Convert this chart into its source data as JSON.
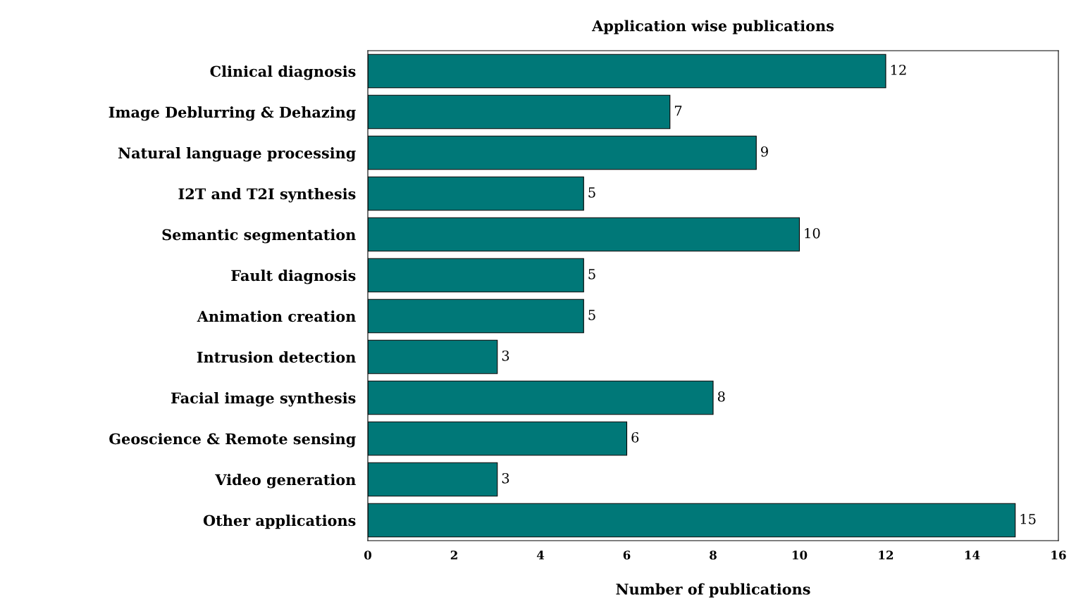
{
  "chart_data": {
    "type": "bar",
    "orientation": "horizontal",
    "title": "Application wise publications",
    "xlabel": "Number of publications",
    "categories": [
      "Clinical diagnosis",
      "Image Deblurring & Dehazing",
      "Natural language processing",
      "I2T and T2I synthesis",
      "Semantic segmentation",
      "Fault diagnosis",
      "Animation creation",
      "Intrusion detection",
      "Facial image synthesis",
      "Geoscience & Remote sensing",
      "Video generation",
      "Other applications"
    ],
    "values": [
      12,
      7,
      9,
      5,
      10,
      5,
      5,
      3,
      8,
      6,
      3,
      15
    ],
    "color": "#007878",
    "xlim": [
      0,
      16
    ],
    "xticks": [
      0,
      2,
      4,
      6,
      8,
      10,
      12,
      14,
      16
    ],
    "data_labels": true,
    "grid": false,
    "legend": false
  }
}
